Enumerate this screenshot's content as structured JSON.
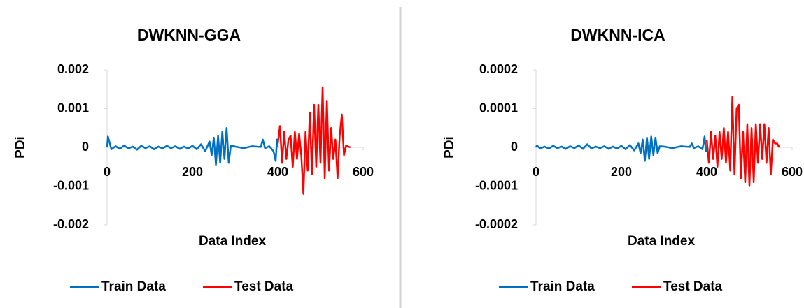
{
  "chart_data": [
    {
      "type": "line",
      "title": "DWKNN-GGA",
      "x_label": "Data Index",
      "y_label": "PDi",
      "xlim": [
        0,
        600
      ],
      "xticks": [
        0,
        200,
        400,
        600
      ],
      "ylim": [
        -0.002,
        0.002
      ],
      "yticks": [
        -0.002,
        -0.001,
        0,
        0.001,
        0.002
      ],
      "legend": "bottom",
      "series": [
        {
          "name": "Train Data",
          "color": "#0070c0",
          "x": [
            0,
            2,
            10,
            20,
            30,
            40,
            50,
            60,
            70,
            80,
            90,
            100,
            110,
            120,
            130,
            140,
            150,
            160,
            170,
            180,
            190,
            200,
            210,
            220,
            230,
            240,
            245,
            250,
            255,
            260,
            265,
            270,
            275,
            280,
            285,
            290,
            300,
            320,
            340,
            360,
            365,
            370,
            380,
            390,
            395,
            398,
            400
          ],
          "values": [
            0,
            0.00028,
            -5e-05,
            3e-05,
            -4e-05,
            5e-05,
            -3e-05,
            2e-05,
            -6e-05,
            4e-05,
            -2e-05,
            3e-05,
            -5e-05,
            2e-05,
            -3e-05,
            4e-05,
            -2e-05,
            3e-05,
            -4e-05,
            2e-05,
            -3e-05,
            4e-05,
            -5e-05,
            8e-05,
            -0.0001,
            0.00015,
            -0.0002,
            0.00025,
            -0.00045,
            0.0003,
            -0.0004,
            0.0004,
            -0.0003,
            0.0005,
            -0.0004,
            5e-05,
            2e-05,
            -2e-05,
            3e-05,
            1e-05,
            0.0002,
            -2e-05,
            3e-05,
            -0.0001,
            -0.00035,
            0.0002,
            0
          ]
        },
        {
          "name": "Test Data",
          "color": "#ff0000",
          "x": [
            400,
            405,
            410,
            415,
            420,
            425,
            430,
            435,
            440,
            445,
            450,
            455,
            460,
            465,
            470,
            475,
            480,
            485,
            490,
            495,
            500,
            505,
            510,
            515,
            520,
            525,
            530,
            535,
            540,
            545,
            550,
            555,
            560,
            565,
            570
          ],
          "values": [
            0.0001,
            0.00055,
            -0.0004,
            0.0004,
            -0.0003,
            0.0002,
            0.0003,
            -0.0005,
            0.0004,
            -0.0003,
            0.00035,
            -0.0002,
            -0.0012,
            0.0004,
            -0.0006,
            0.0009,
            -0.0007,
            0.0011,
            -0.0005,
            0.0011,
            -0.0004,
            0.00155,
            -0.0008,
            0.0012,
            -0.0006,
            0.0005,
            -0.0003,
            0.0002,
            -0.0008,
            0.0003,
            0.00085,
            -0.0002,
            5e-05,
            2e-05,
            0
          ]
        }
      ]
    },
    {
      "type": "line",
      "title": "DWKNN-ICA",
      "x_label": "Data Index",
      "y_label": "PDi",
      "xlim": [
        0,
        600
      ],
      "xticks": [
        0,
        200,
        400,
        600
      ],
      "ylim": [
        -0.0002,
        0.0002
      ],
      "yticks": [
        -0.0002,
        -0.0001,
        0,
        0.0001,
        0.0002
      ],
      "legend": "bottom",
      "series": [
        {
          "name": "Train Data",
          "color": "#0070c0",
          "x": [
            0,
            2,
            10,
            20,
            30,
            40,
            50,
            60,
            70,
            80,
            90,
            100,
            110,
            120,
            130,
            140,
            150,
            160,
            170,
            180,
            190,
            200,
            210,
            220,
            230,
            240,
            245,
            250,
            255,
            260,
            265,
            270,
            275,
            280,
            285,
            290,
            300,
            320,
            340,
            360,
            365,
            370,
            380,
            390,
            395,
            398,
            400
          ],
          "values": [
            0,
            5e-06,
            -3e-06,
            2e-06,
            -3e-06,
            4e-06,
            -2e-06,
            2e-06,
            -4e-06,
            3e-06,
            -2e-06,
            5e-06,
            -4e-06,
            8e-06,
            -3e-06,
            2e-06,
            -2e-06,
            3e-06,
            -4e-06,
            2e-06,
            -3e-06,
            4e-06,
            -5e-06,
            6e-06,
            -8e-06,
            1e-05,
            -1.5e-05,
            2e-05,
            -3.5e-05,
            2.5e-05,
            -3e-05,
            2.8e-05,
            -2e-05,
            2.5e-05,
            -1.5e-05,
            3e-06,
            2e-06,
            -2e-06,
            3e-06,
            1e-06,
            1e-05,
            -2e-06,
            3e-06,
            -5e-06,
            2.8e-05,
            -1e-05,
            0
          ]
        },
        {
          "name": "Test Data",
          "color": "#ff0000",
          "x": [
            400,
            405,
            410,
            415,
            420,
            425,
            430,
            435,
            440,
            445,
            450,
            455,
            460,
            465,
            470,
            475,
            480,
            485,
            490,
            495,
            500,
            505,
            510,
            515,
            520,
            525,
            530,
            535,
            540,
            545,
            550,
            555,
            560,
            565,
            570
          ],
          "values": [
            2e-05,
            -4e-05,
            4e-05,
            -3e-05,
            3e-05,
            -5e-05,
            4e-05,
            -3e-05,
            5e-05,
            -4e-05,
            4e-05,
            -6e-05,
            0.00013,
            -7e-05,
            0.0001,
            0.00011,
            -8e-05,
            4e-05,
            -9e-05,
            6e-05,
            -0.0001,
            5e-05,
            -9e-05,
            6e-05,
            -4e-05,
            6e-05,
            -3e-05,
            6e-05,
            -4e-05,
            5e-05,
            -7e-05,
            2e-05,
            1e-05,
            1e-05,
            0
          ]
        }
      ]
    }
  ]
}
